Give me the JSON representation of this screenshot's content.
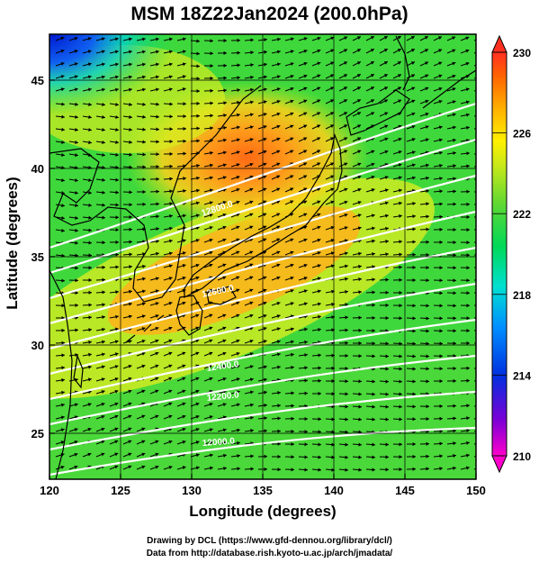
{
  "title": "MSM 18Z22Jan2024 (200.0hPa)",
  "axes": {
    "x_label": "Longitude (degrees)",
    "y_label": "Latitude  (degrees)",
    "x_ticks": [
      "120",
      "125",
      "130",
      "135",
      "140",
      "145",
      "150"
    ],
    "y_ticks": [
      "25",
      "30",
      "35",
      "40",
      "45"
    ],
    "x_range": [
      120,
      150
    ],
    "y_range": [
      22.4,
      47.6
    ]
  },
  "colorbar": {
    "ticks": [
      "210",
      "214",
      "218",
      "222",
      "226",
      "230"
    ],
    "range": [
      210,
      230
    ],
    "colors": [
      "#ff00cc",
      "#7a00d6",
      "#0030e0",
      "#0090ff",
      "#00e0d0",
      "#00d858",
      "#5cd834",
      "#c8e818",
      "#fff000",
      "#ffb000",
      "#ff6400",
      "#ff3020"
    ],
    "has_extension_triangles": true
  },
  "map": {
    "field": "temperature shading (K)",
    "overlays": [
      "wind vectors",
      "geopotential height contours (white)",
      "coastlines"
    ],
    "contour_labels": [
      "12000.0",
      "12200.0",
      "12400.0",
      "12600.0",
      "12800.0"
    ],
    "grid": true
  },
  "credits": {
    "line1": "Drawing by DCL (https://www.gfd-dennou.org/library/dcl/)",
    "line2": "Data from http://database.rish.kyoto-u.ac.jp/arch/jmadata/"
  }
}
